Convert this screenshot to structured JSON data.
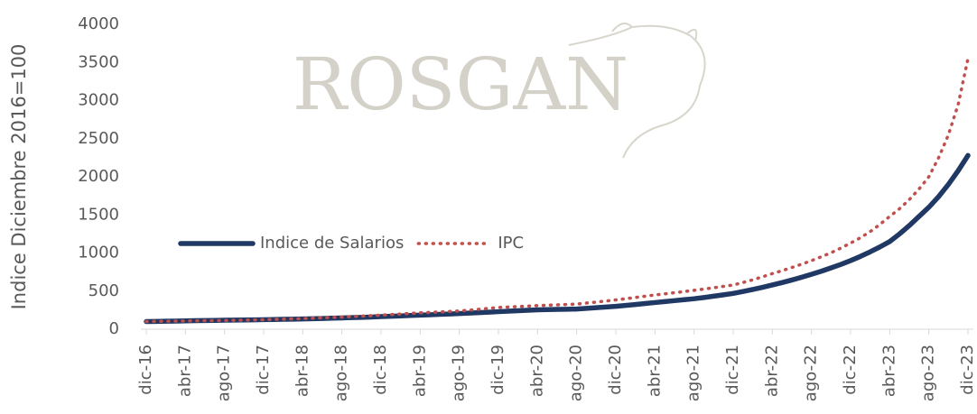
{
  "chart_data": {
    "type": "line",
    "watermark": "ROSGAN",
    "y_label": "Indice Diciembre 2016=100",
    "categories": [
      "dic-16",
      null,
      null,
      null,
      "abr-17",
      null,
      null,
      null,
      "ago-17",
      null,
      null,
      null,
      "dic-17",
      null,
      null,
      null,
      "abr-18",
      null,
      null,
      null,
      "ago-18",
      null,
      null,
      null,
      "dic-18",
      null,
      null,
      null,
      "abr-19",
      null,
      null,
      null,
      "ago-19",
      null,
      null,
      null,
      "dic-19",
      null,
      null,
      null,
      "abr-20",
      null,
      null,
      null,
      "ago-20",
      null,
      null,
      null,
      "dic-20",
      null,
      null,
      null,
      "abr-21",
      null,
      null,
      null,
      "ago-21",
      null,
      null,
      null,
      "dic-21",
      null,
      null,
      null,
      "abr-22",
      null,
      null,
      null,
      "ago-22",
      null,
      null,
      null,
      "dic-22",
      null,
      null,
      null,
      "abr-23",
      null,
      null,
      null,
      "ago-23",
      null,
      null,
      null,
      "dic-23"
    ],
    "series": [
      {
        "name": "Indice de Salarios",
        "color": "#1f3864",
        "style": "solid",
        "values": [
          100,
          102,
          105,
          107,
          110,
          112,
          114,
          116,
          118,
          120,
          121,
          123,
          125,
          127,
          130,
          132,
          135,
          138,
          141,
          145,
          148,
          152,
          156,
          160,
          165,
          170,
          175,
          180,
          185,
          190,
          195,
          200,
          205,
          211,
          217,
          223,
          230,
          236,
          242,
          248,
          255,
          257,
          260,
          262,
          265,
          273,
          282,
          291,
          300,
          312,
          324,
          337,
          350,
          362,
          375,
          387,
          400,
          416,
          433,
          451,
          470,
          495,
          522,
          550,
          580,
          612,
          646,
          682,
          720,
          760,
          805,
          850,
          900,
          955,
          1015,
          1080,
          1150,
          1250,
          1360,
          1480,
          1600,
          1740,
          1900,
          2080,
          2280
        ]
      },
      {
        "name": "IPC",
        "color": "#c0504d",
        "style": "dotted",
        "values": [
          100,
          102,
          104,
          106,
          108,
          110,
          112,
          113,
          115,
          117,
          120,
          122,
          125,
          129,
          132,
          136,
          140,
          145,
          150,
          155,
          160,
          166,
          172,
          178,
          185,
          192,
          199,
          207,
          215,
          221,
          227,
          233,
          240,
          250,
          261,
          273,
          285,
          291,
          297,
          303,
          310,
          315,
          320,
          325,
          330,
          343,
          356,
          370,
          385,
          400,
          416,
          433,
          450,
          464,
          479,
          494,
          510,
          527,
          544,
          562,
          580,
          613,
          648,
          688,
          730,
          768,
          810,
          853,
          900,
          950,
          1003,
          1064,
          1130,
          1200,
          1280,
          1375,
          1480,
          1580,
          1700,
          1840,
          2000,
          2250,
          2550,
          2950,
          3550
        ]
      }
    ],
    "ylim": [
      0,
      4000
    ],
    "yticks": [
      0,
      500,
      1000,
      1500,
      2000,
      2500,
      3000,
      3500,
      4000
    ],
    "legend": "middle-left"
  }
}
